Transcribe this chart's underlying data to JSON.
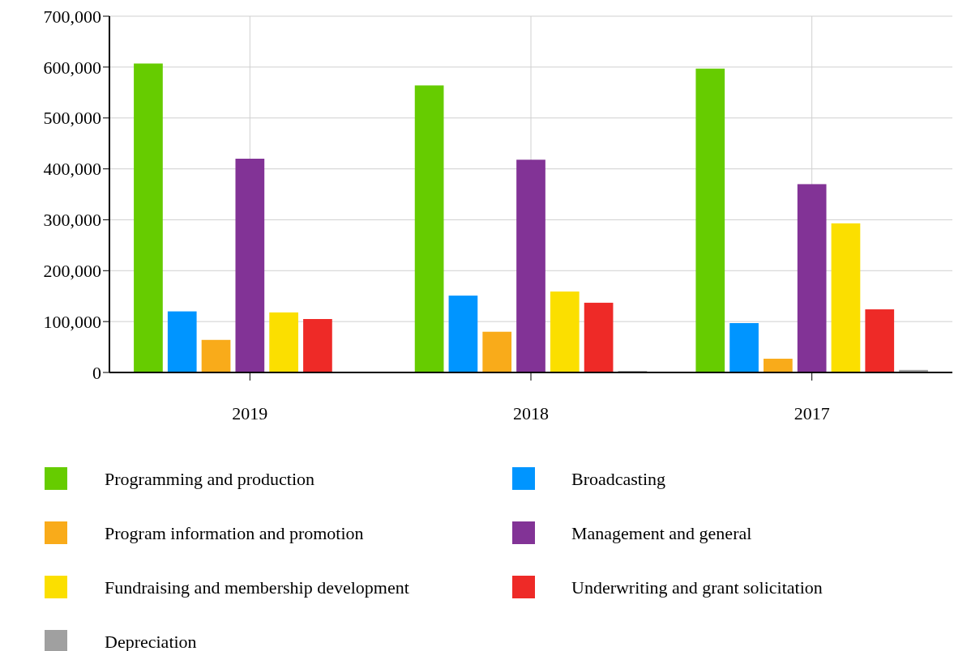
{
  "chart_data": {
    "type": "bar",
    "categories": [
      "2019",
      "2018",
      "2017"
    ],
    "series": [
      {
        "name": "Programming and production",
        "color": "#66cc00",
        "values": [
          607000,
          564000,
          597000
        ]
      },
      {
        "name": "Broadcasting",
        "color": "#0095ff",
        "values": [
          120000,
          151000,
          97000
        ]
      },
      {
        "name": "Program information and promotion",
        "color": "#f9ab1a",
        "values": [
          64000,
          80000,
          27000
        ]
      },
      {
        "name": "Management and general",
        "color": "#823396",
        "values": [
          420000,
          418000,
          370000
        ]
      },
      {
        "name": "Fundraising and membership development",
        "color": "#fbdf00",
        "values": [
          118000,
          159000,
          293000
        ]
      },
      {
        "name": "Underwriting and grant solicitation",
        "color": "#ee2a27",
        "values": [
          105000,
          137000,
          124000
        ]
      },
      {
        "name": "Depreciation",
        "color": "#a0a0a0",
        "values": [
          0,
          3000,
          5000
        ]
      }
    ],
    "ylim": [
      0,
      700000
    ],
    "yticks": [
      {
        "value": 0,
        "label": "0"
      },
      {
        "value": 100000,
        "label": "100,000"
      },
      {
        "value": 200000,
        "label": "200,000"
      },
      {
        "value": 300000,
        "label": "300,000"
      },
      {
        "value": 400000,
        "label": "400,000"
      },
      {
        "value": 500000,
        "label": "500,000"
      },
      {
        "value": 600000,
        "label": "600,000"
      },
      {
        "value": 700000,
        "label": "700,000"
      }
    ],
    "grid": true,
    "legend": "bottom"
  }
}
